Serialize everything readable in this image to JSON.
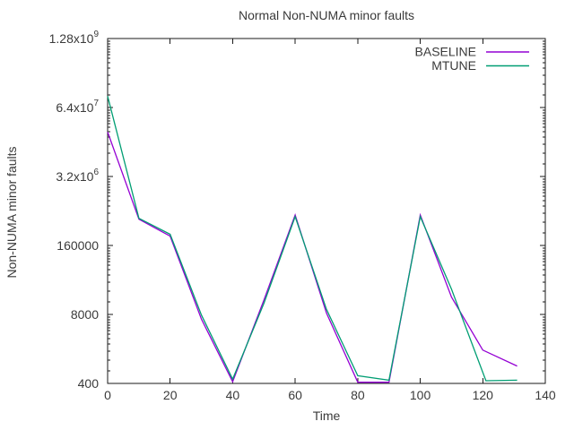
{
  "colors": {
    "background": "#ffffff",
    "axis": "#1a1a1a",
    "text": "#3a3a3a",
    "baseline_line": "#9400d3",
    "mtune_line": "#009e73"
  },
  "chart_data": {
    "type": "line",
    "title": "Normal Non-NUMA minor faults",
    "xlabel": "Time",
    "ylabel": "Non-NUMA minor faults",
    "x_axis": {
      "min": 0,
      "max": 140,
      "ticks": [
        0,
        20,
        40,
        60,
        80,
        100,
        120,
        140
      ]
    },
    "y_axis": {
      "scale": "log",
      "min": 400,
      "max": 1280000000,
      "ticks": [
        {
          "label": "1.28x10",
          "exp": "9",
          "value": 1280000000
        },
        {
          "label": "6.4x10",
          "exp": "7",
          "value": 64000000
        },
        {
          "label": "3.2x10",
          "exp": "6",
          "value": 3200000
        },
        {
          "label": "160000",
          "exp": "",
          "value": 160000
        },
        {
          "label": "8000",
          "exp": "",
          "value": 8000
        },
        {
          "label": "400",
          "exp": "",
          "value": 400
        }
      ]
    },
    "grid": false,
    "legend_position": "top-right-inside",
    "series": [
      {
        "name": "BASELINE",
        "color": "#9400d3",
        "x": [
          0,
          10,
          20,
          30,
          40,
          50,
          60,
          70,
          80,
          90,
          100,
          110,
          120,
          131
        ],
        "values": [
          22000000,
          500000,
          240000,
          6500,
          430,
          15000,
          600000,
          8500,
          420,
          420,
          600000,
          17000,
          1700,
          850
        ]
      },
      {
        "name": "MTUNE",
        "color": "#009e73",
        "x": [
          0,
          10,
          20,
          30,
          40,
          50,
          60,
          70,
          80,
          90,
          100,
          110,
          121,
          131
        ],
        "values": [
          105000000,
          520000,
          260000,
          7800,
          480,
          13000,
          560000,
          10000,
          560,
          460,
          560000,
          24000,
          450,
          460
        ]
      }
    ]
  }
}
